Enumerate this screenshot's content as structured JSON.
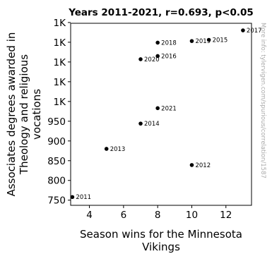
{
  "chart_data": {
    "type": "scatter",
    "title": "Years 2011-2021, r=0.693, p<0.05",
    "xlabel_lines": [
      "Season wins for the Minnesota",
      "Vikings"
    ],
    "ylabel_lines": [
      "Associates degrees awarded in",
      "Theology and religious",
      "vocations"
    ],
    "xlim": [
      2.9,
      13.5
    ],
    "ylim": [
      737,
      1198
    ],
    "x_ticks": [
      {
        "value": 4,
        "label": "4"
      },
      {
        "value": 6,
        "label": "6"
      },
      {
        "value": 8,
        "label": "8"
      },
      {
        "value": 10,
        "label": "10"
      },
      {
        "value": 12,
        "label": "12"
      }
    ],
    "y_ticks": [
      {
        "value": 750,
        "label": "750"
      },
      {
        "value": 800,
        "label": "800"
      },
      {
        "value": 850,
        "label": "850"
      },
      {
        "value": 900,
        "label": "900"
      },
      {
        "value": 950,
        "label": "950"
      },
      {
        "value": 1000,
        "label": "1K"
      },
      {
        "value": 1050,
        "label": "1K"
      },
      {
        "value": 1100,
        "label": "1K"
      },
      {
        "value": 1150,
        "label": "1K"
      },
      {
        "value": 1200,
        "label": "1K"
      }
    ],
    "points": [
      {
        "label": "2011",
        "x": 3,
        "y": 758
      },
      {
        "label": "2012",
        "x": 10,
        "y": 839
      },
      {
        "label": "2013",
        "x": 5,
        "y": 880
      },
      {
        "label": "2014",
        "x": 7,
        "y": 944
      },
      {
        "label": "2015",
        "x": 11,
        "y": 1156
      },
      {
        "label": "2016",
        "x": 8,
        "y": 1115
      },
      {
        "label": "2017",
        "x": 13,
        "y": 1180
      },
      {
        "label": "2018",
        "x": 8,
        "y": 1149
      },
      {
        "label": "2019",
        "x": 10,
        "y": 1153
      },
      {
        "label": "2020",
        "x": 7,
        "y": 1107
      },
      {
        "label": "2021",
        "x": 8,
        "y": 983
      }
    ],
    "grid": false,
    "point_color": "#000000",
    "watermark": "More info: tylervigen.com/spurious/correlation/1587"
  }
}
